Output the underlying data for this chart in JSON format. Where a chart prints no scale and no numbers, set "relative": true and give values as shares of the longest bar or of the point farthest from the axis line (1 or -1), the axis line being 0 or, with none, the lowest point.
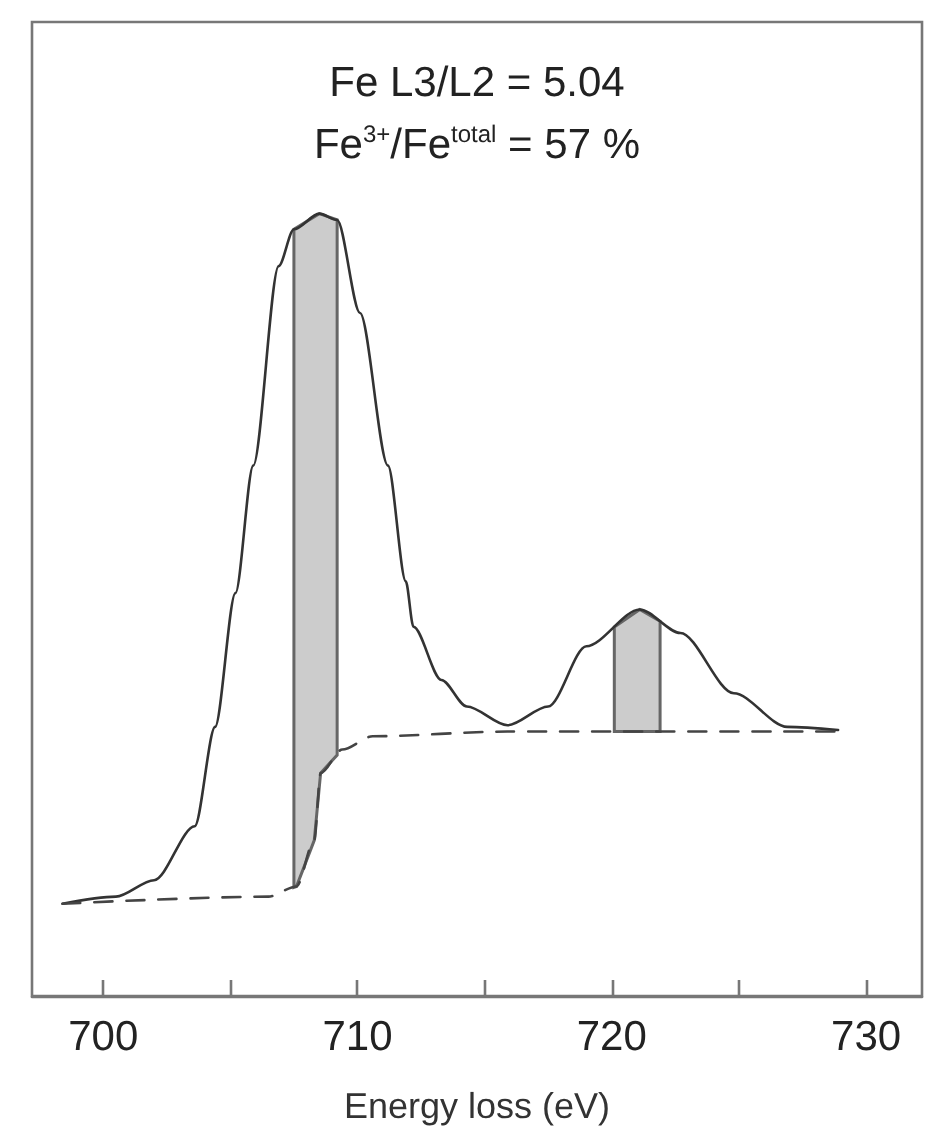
{
  "chart_data": {
    "type": "line",
    "relative": true,
    "xlabel": "Energy loss (eV)",
    "annotations": [
      "Fe L3/L2 = 5.04",
      "Fe$^{3+}$/Fe$^{total}$ = 57 %"
    ],
    "xlim": [
      697.2,
      732.2
    ],
    "xticks": [
      700,
      {
        "value": 705,
        "label": null
      },
      710,
      {
        "value": 715,
        "label": null
      },
      720,
      {
        "value": 725,
        "label": null
      },
      730
    ],
    "grid": false,
    "marker": "none",
    "series": [
      {
        "color": "#333333",
        "line_style": "solid",
        "x": [
          698.4,
          700.5,
          702.0,
          703.6,
          704.4,
          705.2,
          705.9,
          706.9,
          707.5,
          708.5,
          709.2,
          710.1,
          711.2,
          711.9,
          712.2,
          713.3,
          714.3,
          715.9,
          717.5,
          719.0,
          721.1,
          722.7,
          724.8,
          726.9,
          728.9
        ],
        "values": [
          0.118,
          0.127,
          0.148,
          0.217,
          0.344,
          0.515,
          0.678,
          0.933,
          0.98,
          1.0,
          0.992,
          0.873,
          0.678,
          0.53,
          0.472,
          0.404,
          0.37,
          0.346,
          0.37,
          0.447,
          0.494,
          0.464,
          0.387,
          0.344,
          0.34
        ]
      },
      {
        "color": "#444444",
        "line_style": "dashed",
        "x": [
          698.4,
          706.5,
          707.6,
          708.3,
          708.55,
          709.4,
          710.6,
          715.9,
          728.9
        ],
        "values": [
          0.118,
          0.127,
          0.14,
          0.199,
          0.285,
          0.315,
          0.332,
          0.338,
          0.338
        ]
      }
    ],
    "bands": [
      {
        "axis": "x",
        "from": 707.5,
        "to": 709.2,
        "color": "#cccccc"
      },
      {
        "axis": "x",
        "from": 720.1,
        "to": 721.9,
        "color": "#cccccc"
      }
    ]
  }
}
